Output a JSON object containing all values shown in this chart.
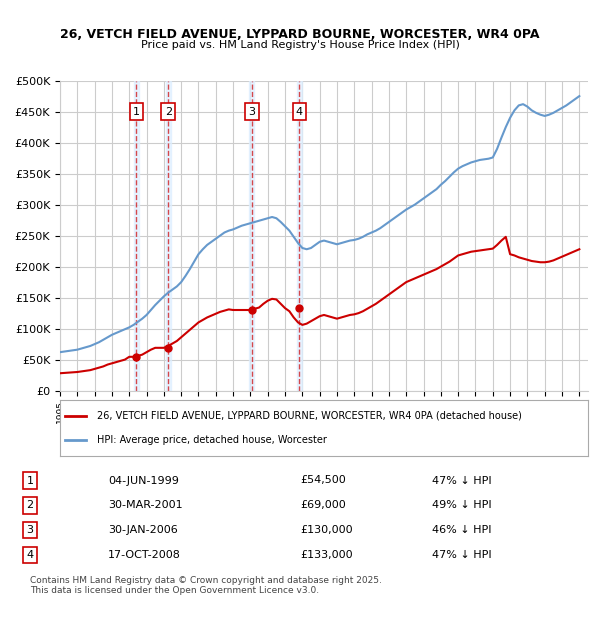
{
  "title1": "26, VETCH FIELD AVENUE, LYPPARD BOURNE, WORCESTER, WR4 0PA",
  "title2": "Price paid vs. HM Land Registry's House Price Index (HPI)",
  "ylabel": "",
  "background_color": "#ffffff",
  "plot_bg": "#ffffff",
  "grid_color": "#cccccc",
  "hpi_color": "#6699cc",
  "price_color": "#cc0000",
  "transactions": [
    {
      "num": 1,
      "date": "1999-06-04",
      "price": 54500,
      "pct": "47% ↓ HPI"
    },
    {
      "num": 2,
      "date": "2001-03-30",
      "price": 69000,
      "pct": "49% ↓ HPI"
    },
    {
      "num": 3,
      "date": "2006-01-30",
      "price": 130000,
      "pct": "46% ↓ HPI"
    },
    {
      "num": 4,
      "date": "2008-10-17",
      "price": 133000,
      "pct": "47% ↓ HPI"
    }
  ],
  "legend_label_price": "26, VETCH FIELD AVENUE, LYPPARD BOURNE, WORCESTER, WR4 0PA (detached house)",
  "legend_label_hpi": "HPI: Average price, detached house, Worcester",
  "footnote": "Contains HM Land Registry data © Crown copyright and database right 2025.\nThis data is licensed under the Open Government Licence v3.0.",
  "yticks": [
    0,
    50000,
    100000,
    150000,
    200000,
    250000,
    300000,
    350000,
    400000,
    450000,
    500000
  ],
  "ylabels": [
    "£0",
    "£50K",
    "£100K",
    "£150K",
    "£200K",
    "£250K",
    "£300K",
    "£350K",
    "£400K",
    "£450K",
    "£500K"
  ],
  "hpi_data_x": [
    1995.0,
    1995.25,
    1995.5,
    1995.75,
    1996.0,
    1996.25,
    1996.5,
    1996.75,
    1997.0,
    1997.25,
    1997.5,
    1997.75,
    1998.0,
    1998.25,
    1998.5,
    1998.75,
    1999.0,
    1999.25,
    1999.5,
    1999.75,
    2000.0,
    2000.25,
    2000.5,
    2000.75,
    2001.0,
    2001.25,
    2001.5,
    2001.75,
    2002.0,
    2002.25,
    2002.5,
    2002.75,
    2003.0,
    2003.25,
    2003.5,
    2003.75,
    2004.0,
    2004.25,
    2004.5,
    2004.75,
    2005.0,
    2005.25,
    2005.5,
    2005.75,
    2006.0,
    2006.25,
    2006.5,
    2006.75,
    2007.0,
    2007.25,
    2007.5,
    2007.75,
    2008.0,
    2008.25,
    2008.5,
    2008.75,
    2009.0,
    2009.25,
    2009.5,
    2009.75,
    2010.0,
    2010.25,
    2010.5,
    2010.75,
    2011.0,
    2011.25,
    2011.5,
    2011.75,
    2012.0,
    2012.25,
    2012.5,
    2012.75,
    2013.0,
    2013.25,
    2013.5,
    2013.75,
    2014.0,
    2014.25,
    2014.5,
    2014.75,
    2015.0,
    2015.25,
    2015.5,
    2015.75,
    2016.0,
    2016.25,
    2016.5,
    2016.75,
    2017.0,
    2017.25,
    2017.5,
    2017.75,
    2018.0,
    2018.25,
    2018.5,
    2018.75,
    2019.0,
    2019.25,
    2019.5,
    2019.75,
    2020.0,
    2020.25,
    2020.5,
    2020.75,
    2021.0,
    2021.25,
    2021.5,
    2021.75,
    2022.0,
    2022.25,
    2022.5,
    2022.75,
    2023.0,
    2023.25,
    2023.5,
    2023.75,
    2024.0,
    2024.25,
    2024.5,
    2024.75,
    2025.0
  ],
  "hpi_data_y": [
    62000,
    63000,
    64000,
    65000,
    66000,
    68000,
    70000,
    72000,
    75000,
    78000,
    82000,
    86000,
    90000,
    93000,
    96000,
    99000,
    102000,
    106000,
    111000,
    116000,
    122000,
    130000,
    138000,
    145000,
    152000,
    158000,
    163000,
    168000,
    175000,
    185000,
    196000,
    208000,
    220000,
    228000,
    235000,
    240000,
    245000,
    250000,
    255000,
    258000,
    260000,
    263000,
    266000,
    268000,
    270000,
    272000,
    274000,
    276000,
    278000,
    280000,
    278000,
    272000,
    265000,
    258000,
    248000,
    238000,
    230000,
    228000,
    230000,
    235000,
    240000,
    242000,
    240000,
    238000,
    236000,
    238000,
    240000,
    242000,
    243000,
    245000,
    248000,
    252000,
    255000,
    258000,
    262000,
    267000,
    272000,
    277000,
    282000,
    287000,
    292000,
    296000,
    300000,
    305000,
    310000,
    315000,
    320000,
    325000,
    332000,
    338000,
    345000,
    352000,
    358000,
    362000,
    365000,
    368000,
    370000,
    372000,
    373000,
    374000,
    376000,
    390000,
    408000,
    425000,
    440000,
    452000,
    460000,
    462000,
    458000,
    452000,
    448000,
    445000,
    443000,
    445000,
    448000,
    452000,
    456000,
    460000,
    465000,
    470000,
    475000
  ],
  "price_data_x": [
    1995.0,
    1995.25,
    1995.5,
    1995.75,
    1996.0,
    1996.25,
    1996.5,
    1996.75,
    1997.0,
    1997.25,
    1997.5,
    1997.75,
    1998.0,
    1998.25,
    1998.5,
    1998.75,
    1999.0,
    1999.25,
    1999.5,
    1999.75,
    2000.0,
    2000.25,
    2000.5,
    2000.75,
    2001.0,
    2001.25,
    2001.5,
    2001.75,
    2002.0,
    2002.25,
    2002.5,
    2002.75,
    2003.0,
    2003.25,
    2003.5,
    2003.75,
    2004.0,
    2004.25,
    2004.5,
    2004.75,
    2005.0,
    2005.25,
    2005.5,
    2005.75,
    2006.0,
    2006.25,
    2006.5,
    2006.75,
    2007.0,
    2007.25,
    2007.5,
    2007.75,
    2008.0,
    2008.25,
    2008.5,
    2008.75,
    2009.0,
    2009.25,
    2009.5,
    2009.75,
    2010.0,
    2010.25,
    2010.5,
    2010.75,
    2011.0,
    2011.25,
    2011.5,
    2011.75,
    2012.0,
    2012.25,
    2012.5,
    2012.75,
    2013.0,
    2013.25,
    2013.5,
    2013.75,
    2014.0,
    2014.25,
    2014.5,
    2014.75,
    2015.0,
    2015.25,
    2015.5,
    2015.75,
    2016.0,
    2016.25,
    2016.5,
    2016.75,
    2017.0,
    2017.25,
    2017.5,
    2017.75,
    2018.0,
    2018.25,
    2018.5,
    2018.75,
    2019.0,
    2019.25,
    2019.5,
    2019.75,
    2020.0,
    2020.25,
    2020.5,
    2020.75,
    2021.0,
    2021.25,
    2021.5,
    2021.75,
    2022.0,
    2022.25,
    2022.5,
    2022.75,
    2023.0,
    2023.25,
    2023.5,
    2023.75,
    2024.0,
    2024.25,
    2024.5,
    2024.75,
    2025.0
  ],
  "price_data_y": [
    28000,
    28500,
    29000,
    29500,
    30000,
    31000,
    32000,
    33000,
    35000,
    37000,
    39000,
    42000,
    44000,
    46000,
    48000,
    50000,
    54500,
    54500,
    56000,
    58000,
    62000,
    66000,
    69000,
    69000,
    69000,
    72000,
    76000,
    80000,
    86000,
    92000,
    98000,
    104000,
    110000,
    114000,
    118000,
    121000,
    124000,
    127000,
    129000,
    131000,
    130000,
    130000,
    130000,
    130000,
    130000,
    132000,
    134000,
    140000,
    145000,
    148000,
    147000,
    140000,
    133000,
    128000,
    118000,
    110000,
    106000,
    108000,
    112000,
    116000,
    120000,
    122000,
    120000,
    118000,
    116000,
    118000,
    120000,
    122000,
    123000,
    125000,
    128000,
    132000,
    136000,
    140000,
    145000,
    150000,
    155000,
    160000,
    165000,
    170000,
    175000,
    178000,
    181000,
    184000,
    187000,
    190000,
    193000,
    196000,
    200000,
    204000,
    208000,
    213000,
    218000,
    220000,
    222000,
    224000,
    225000,
    226000,
    227000,
    228000,
    229000,
    235000,
    242000,
    248000,
    220000,
    218000,
    215000,
    213000,
    211000,
    209000,
    208000,
    207000,
    207000,
    208000,
    210000,
    213000,
    216000,
    219000,
    222000,
    225000,
    228000
  ],
  "xmin": 1995,
  "xmax": 2025.5,
  "ymin": 0,
  "ymax": 500000
}
